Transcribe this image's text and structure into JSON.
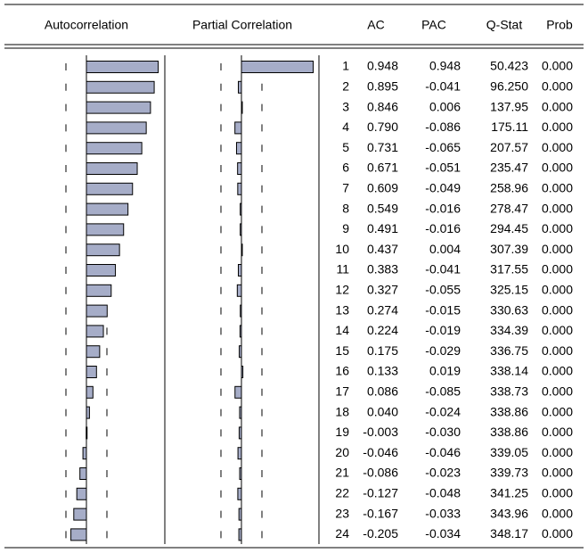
{
  "headers": [
    "Autocorrelation",
    "Partial Correlation",
    "AC",
    "PAC",
    "Q-Stat",
    "Prob"
  ],
  "rows": [
    [
      1,
      "0.948",
      "0.948",
      "50.423",
      "0.000"
    ],
    [
      2,
      "0.895",
      "-0.041",
      "96.250",
      "0.000"
    ],
    [
      3,
      "0.846",
      "0.006",
      "137.95",
      "0.000"
    ],
    [
      4,
      "0.790",
      "-0.086",
      "175.11",
      "0.000"
    ],
    [
      5,
      "0.731",
      "-0.065",
      "207.57",
      "0.000"
    ],
    [
      6,
      "0.671",
      "-0.051",
      "235.47",
      "0.000"
    ],
    [
      7,
      "0.609",
      "-0.049",
      "258.96",
      "0.000"
    ],
    [
      8,
      "0.549",
      "-0.016",
      "278.47",
      "0.000"
    ],
    [
      9,
      "0.491",
      "-0.016",
      "294.45",
      "0.000"
    ],
    [
      10,
      "0.437",
      "0.004",
      "307.39",
      "0.000"
    ],
    [
      11,
      "0.383",
      "-0.041",
      "317.55",
      "0.000"
    ],
    [
      12,
      "0.327",
      "-0.055",
      "325.15",
      "0.000"
    ],
    [
      13,
      "0.274",
      "-0.015",
      "330.63",
      "0.000"
    ],
    [
      14,
      "0.224",
      "-0.019",
      "334.39",
      "0.000"
    ],
    [
      15,
      "0.175",
      "-0.029",
      "336.75",
      "0.000"
    ],
    [
      16,
      "0.133",
      "0.019",
      "338.14",
      "0.000"
    ],
    [
      17,
      "0.086",
      "-0.085",
      "338.73",
      "0.000"
    ],
    [
      18,
      "0.040",
      "-0.024",
      "338.86",
      "0.000"
    ],
    [
      19,
      "-0.003",
      "-0.030",
      "338.86",
      "0.000"
    ],
    [
      20,
      "-0.046",
      "-0.046",
      "339.05",
      "0.000"
    ],
    [
      21,
      "-0.086",
      "-0.023",
      "339.73",
      "0.000"
    ],
    [
      22,
      "-0.127",
      "-0.048",
      "341.25",
      "0.000"
    ],
    [
      23,
      "-0.167",
      "-0.033",
      "343.96",
      "0.000"
    ],
    [
      24,
      "-0.205",
      "-0.034",
      "348.17",
      "0.000"
    ]
  ]
}
